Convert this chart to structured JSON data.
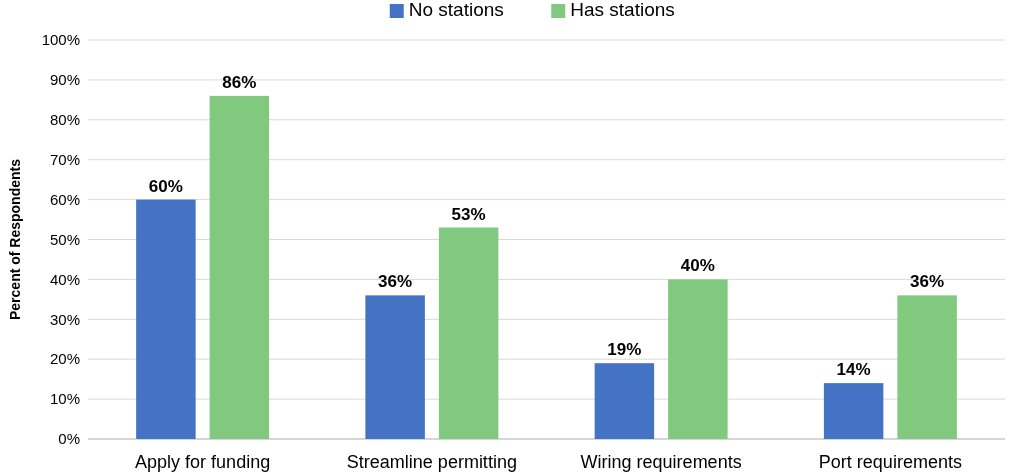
{
  "chart_data": {
    "type": "bar",
    "ylabel": "Percent of Respondents",
    "categories": [
      "Apply for funding",
      "Streamline permitting",
      "Wiring requirements",
      "Port requirements"
    ],
    "series": [
      {
        "name": "No stations",
        "color": "#4472c4",
        "values": [
          60,
          36,
          19,
          14
        ],
        "value_labels": [
          "60%",
          "36%",
          "19%",
          "14%"
        ]
      },
      {
        "name": "Has stations",
        "color": "#80c97f",
        "values": [
          86,
          53,
          40,
          36
        ],
        "value_labels": [
          "86%",
          "53%",
          "40%",
          "36%"
        ]
      }
    ],
    "ylim": [
      0,
      100
    ],
    "yticks": [
      {
        "value": 0,
        "label": "0%"
      },
      {
        "value": 10,
        "label": "10%"
      },
      {
        "value": 20,
        "label": "20%"
      },
      {
        "value": 30,
        "label": "30%"
      },
      {
        "value": 40,
        "label": "40%"
      },
      {
        "value": 50,
        "label": "50%"
      },
      {
        "value": 60,
        "label": "60%"
      },
      {
        "value": 70,
        "label": "70%"
      },
      {
        "value": 80,
        "label": "80%"
      },
      {
        "value": 90,
        "label": "90%"
      },
      {
        "value": 100,
        "label": "100%"
      }
    ],
    "grid": "y",
    "legend": "top"
  }
}
